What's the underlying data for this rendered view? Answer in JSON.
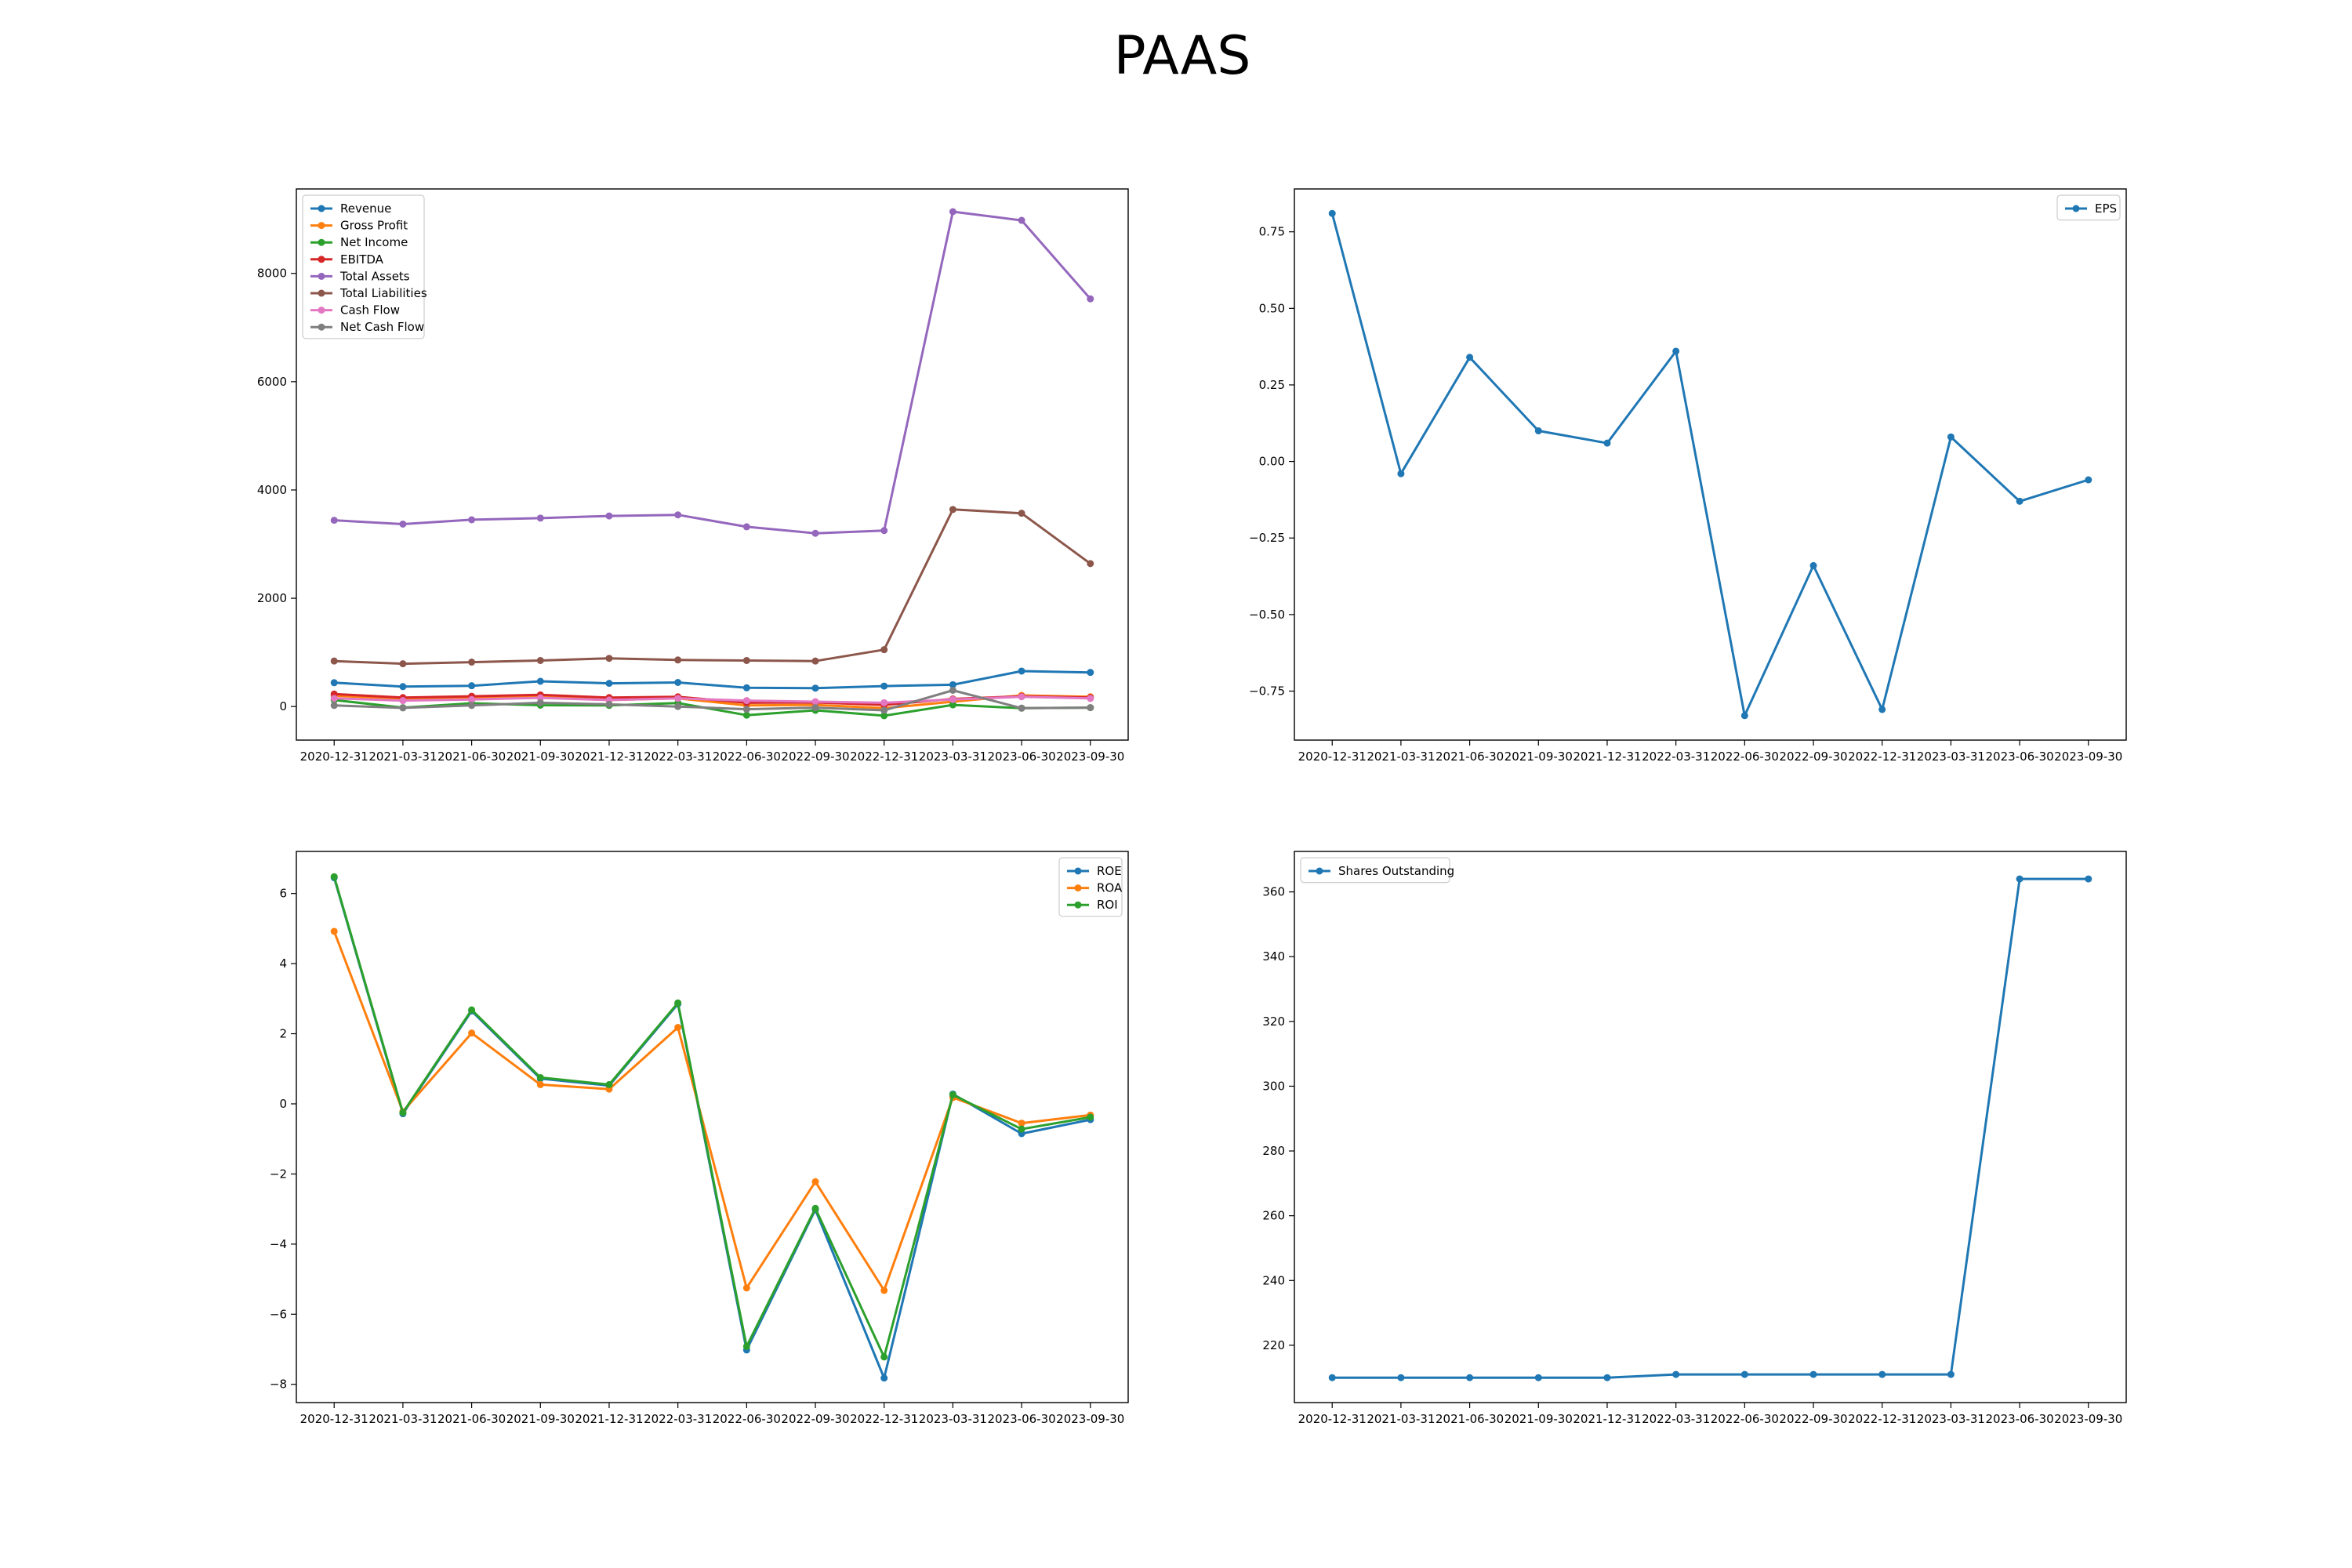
{
  "figure": {
    "title": "PAAS"
  },
  "colors": {
    "blue": "#1f77b4",
    "orange": "#ff7f0e",
    "green": "#2ca02c",
    "red": "#d62728",
    "purple": "#9467bd",
    "brown": "#8c564b",
    "pink": "#e377c2",
    "gray": "#7f7f7f"
  },
  "chart_data": [
    {
      "type": "line",
      "title": "",
      "xlabel": "",
      "ylabel": "",
      "categories": [
        "2020-12-31",
        "2021-03-31",
        "2021-06-30",
        "2021-09-30",
        "2021-12-31",
        "2022-03-31",
        "2022-06-30",
        "2022-09-30",
        "2022-12-31",
        "2023-03-31",
        "2023-06-30",
        "2023-09-30"
      ],
      "ylim": [
        -620,
        9560
      ],
      "yticks": [
        0,
        2000,
        4000,
        6000,
        8000
      ],
      "ytick_labels": [
        "0",
        "2000",
        "4000",
        "6000",
        "8000"
      ],
      "legend_position": "upper left",
      "series": [
        {
          "name": "Revenue",
          "color": "#1f77b4",
          "values": [
            440,
            368,
            384,
            466,
            428,
            445,
            346,
            340,
            378,
            403,
            655,
            630
          ]
        },
        {
          "name": "Gross Profit",
          "color": "#ff7f0e",
          "values": [
            200,
            140,
            160,
            180,
            120,
            150,
            20,
            30,
            -30,
            90,
            205,
            180
          ]
        },
        {
          "name": "Net Income",
          "color": "#2ca02c",
          "values": [
            120,
            -20,
            60,
            25,
            20,
            65,
            -160,
            -70,
            -170,
            30,
            -30,
            -20
          ]
        },
        {
          "name": "EBITDA",
          "color": "#d62728",
          "values": [
            230,
            165,
            190,
            215,
            165,
            180,
            70,
            75,
            30,
            140,
            190,
            165
          ]
        },
        {
          "name": "Total Assets",
          "color": "#9467bd",
          "values": [
            3440,
            3370,
            3450,
            3480,
            3520,
            3540,
            3320,
            3200,
            3250,
            9140,
            8980,
            7530
          ]
        },
        {
          "name": "Total Liabilities",
          "color": "#8c564b",
          "values": [
            840,
            790,
            820,
            850,
            890,
            860,
            850,
            840,
            1050,
            3640,
            3570,
            2640
          ]
        },
        {
          "name": "Cash Flow",
          "color": "#e377c2",
          "values": [
            150,
            110,
            130,
            160,
            120,
            150,
            110,
            90,
            70,
            130,
            180,
            150
          ]
        },
        {
          "name": "Net Cash Flow",
          "color": "#7f7f7f",
          "values": [
            20,
            -25,
            20,
            70,
            40,
            0,
            -50,
            -20,
            -70,
            300,
            -30,
            -20
          ]
        }
      ]
    },
    {
      "type": "line",
      "title": "",
      "xlabel": "",
      "ylabel": "",
      "categories": [
        "2020-12-31",
        "2021-03-31",
        "2021-06-30",
        "2021-09-30",
        "2021-12-31",
        "2022-03-31",
        "2022-06-30",
        "2022-09-30",
        "2022-12-31",
        "2023-03-31",
        "2023-06-30",
        "2023-09-30"
      ],
      "ylim": [
        -0.91,
        0.89
      ],
      "yticks": [
        -0.75,
        -0.5,
        -0.25,
        0,
        0.25,
        0.5,
        0.75
      ],
      "ytick_labels": [
        "−0.75",
        "−0.50",
        "−0.25",
        "0.00",
        "0.25",
        "0.50",
        "0.75"
      ],
      "legend_position": "upper right",
      "series": [
        {
          "name": "EPS",
          "color": "#1f77b4",
          "values": [
            0.81,
            -0.04,
            0.34,
            0.1,
            0.06,
            0.36,
            -0.83,
            -0.34,
            -0.81,
            0.08,
            -0.13,
            -0.06
          ]
        }
      ]
    },
    {
      "type": "line",
      "title": "",
      "xlabel": "",
      "ylabel": "",
      "categories": [
        "2020-12-31",
        "2021-03-31",
        "2021-06-30",
        "2021-09-30",
        "2021-12-31",
        "2022-03-31",
        "2022-06-30",
        "2022-09-30",
        "2022-12-31",
        "2023-03-31",
        "2023-06-30",
        "2023-09-30"
      ],
      "ylim": [
        -8.52,
        7.2
      ],
      "yticks": [
        -8,
        -6,
        -4,
        -2,
        0,
        2,
        4,
        6
      ],
      "ytick_labels": [
        "−8",
        "−6",
        "−4",
        "−2",
        "0",
        "2",
        "4",
        "6"
      ],
      "legend_position": "upper right",
      "series": [
        {
          "name": "ROE",
          "color": "#1f77b4",
          "values": [
            6.45,
            -0.28,
            2.65,
            0.72,
            0.52,
            2.85,
            -7.02,
            -3.02,
            -7.82,
            0.28,
            -0.85,
            -0.45
          ]
        },
        {
          "name": "ROA",
          "color": "#ff7f0e",
          "values": [
            4.92,
            -0.22,
            2.02,
            0.55,
            0.42,
            2.18,
            -5.25,
            -2.22,
            -5.32,
            0.18,
            -0.55,
            -0.32
          ]
        },
        {
          "name": "ROI",
          "color": "#2ca02c",
          "values": [
            6.48,
            -0.25,
            2.68,
            0.75,
            0.55,
            2.88,
            -6.92,
            -2.98,
            -7.22,
            0.26,
            -0.72,
            -0.38
          ]
        }
      ]
    },
    {
      "type": "line",
      "title": "",
      "xlabel": "",
      "ylabel": "",
      "categories": [
        "2020-12-31",
        "2021-03-31",
        "2021-06-30",
        "2021-09-30",
        "2021-12-31",
        "2022-03-31",
        "2022-06-30",
        "2022-09-30",
        "2022-12-31",
        "2023-03-31",
        "2023-06-30",
        "2023-09-30"
      ],
      "ylim": [
        202.3,
        372.5
      ],
      "yticks": [
        220,
        240,
        260,
        280,
        300,
        320,
        340,
        360
      ],
      "ytick_labels": [
        "220",
        "240",
        "260",
        "280",
        "300",
        "320",
        "340",
        "360"
      ],
      "legend_position": "upper left",
      "series": [
        {
          "name": "Shares Outstanding",
          "color": "#1f77b4",
          "values": [
            210,
            210,
            210,
            210,
            210,
            211,
            211,
            211,
            211,
            211,
            364,
            364
          ]
        }
      ]
    }
  ]
}
